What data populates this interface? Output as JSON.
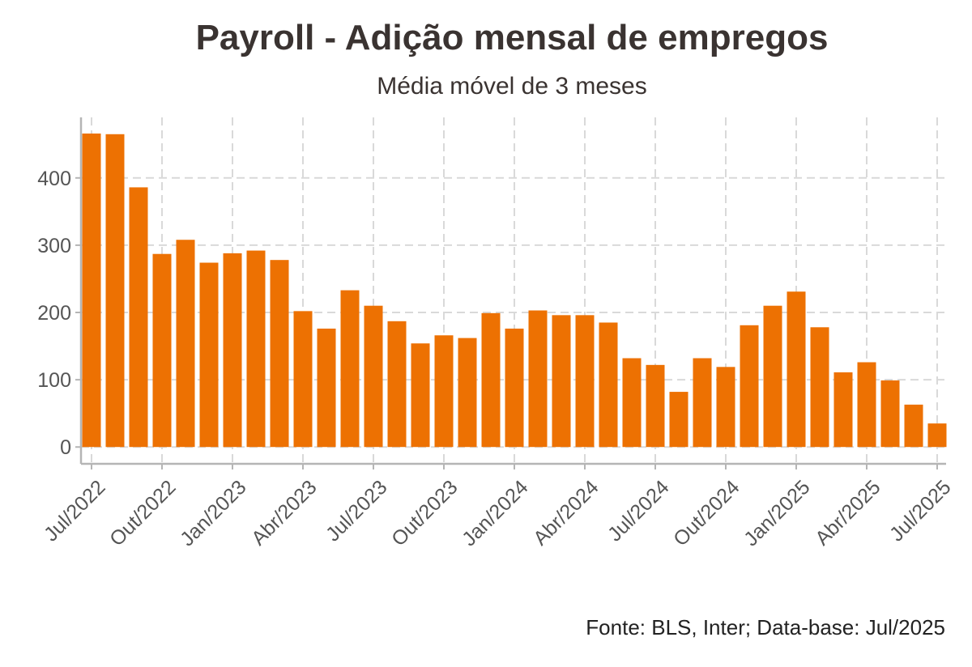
{
  "chart_data": {
    "type": "bar",
    "title": "Payroll - Adição mensal de empregos",
    "subtitle": "Média móvel de 3 meses",
    "caption": "Fonte: BLS, Inter; Data-base: Jul/2025",
    "xlabel": "",
    "ylabel": "",
    "ylim": [
      -25,
      490
    ],
    "yticks": [
      0,
      100,
      200,
      300,
      400
    ],
    "grid": true,
    "legend": "none",
    "bar_color": "#ED7102",
    "categories": [
      "Jul/2022",
      "Ago/2022",
      "Set/2022",
      "Out/2022",
      "Nov/2022",
      "Dez/2022",
      "Jan/2023",
      "Fev/2023",
      "Mar/2023",
      "Abr/2023",
      "Mai/2023",
      "Jun/2023",
      "Jul/2023",
      "Ago/2023",
      "Set/2023",
      "Out/2023",
      "Nov/2023",
      "Dez/2023",
      "Jan/2024",
      "Fev/2024",
      "Mar/2024",
      "Abr/2024",
      "Mai/2024",
      "Jun/2024",
      "Jul/2024",
      "Ago/2024",
      "Set/2024",
      "Out/2024",
      "Nov/2024",
      "Dez/2024",
      "Jan/2025",
      "Fev/2025",
      "Mar/2025",
      "Abr/2025",
      "Mai/2025",
      "Jun/2025",
      "Jul/2025"
    ],
    "x_tick_labels": [
      {
        "index": 0,
        "label": "Jul/2022"
      },
      {
        "index": 3,
        "label": "Out/2022"
      },
      {
        "index": 6,
        "label": "Jan/2023"
      },
      {
        "index": 9,
        "label": "Abr/2023"
      },
      {
        "index": 12,
        "label": "Jul/2023"
      },
      {
        "index": 15,
        "label": "Out/2023"
      },
      {
        "index": 18,
        "label": "Jan/2024"
      },
      {
        "index": 21,
        "label": "Abr/2024"
      },
      {
        "index": 24,
        "label": "Jul/2024"
      },
      {
        "index": 27,
        "label": "Out/2024"
      },
      {
        "index": 30,
        "label": "Jan/2025"
      },
      {
        "index": 33,
        "label": "Abr/2025"
      },
      {
        "index": 36,
        "label": "Jul/2025"
      }
    ],
    "values": [
      466,
      465,
      386,
      287,
      308,
      274,
      288,
      292,
      278,
      202,
      176,
      233,
      210,
      187,
      154,
      166,
      162,
      199,
      176,
      203,
      196,
      196,
      185,
      132,
      122,
      82,
      132,
      119,
      181,
      210,
      231,
      178,
      111,
      126,
      99,
      63,
      35
    ]
  }
}
